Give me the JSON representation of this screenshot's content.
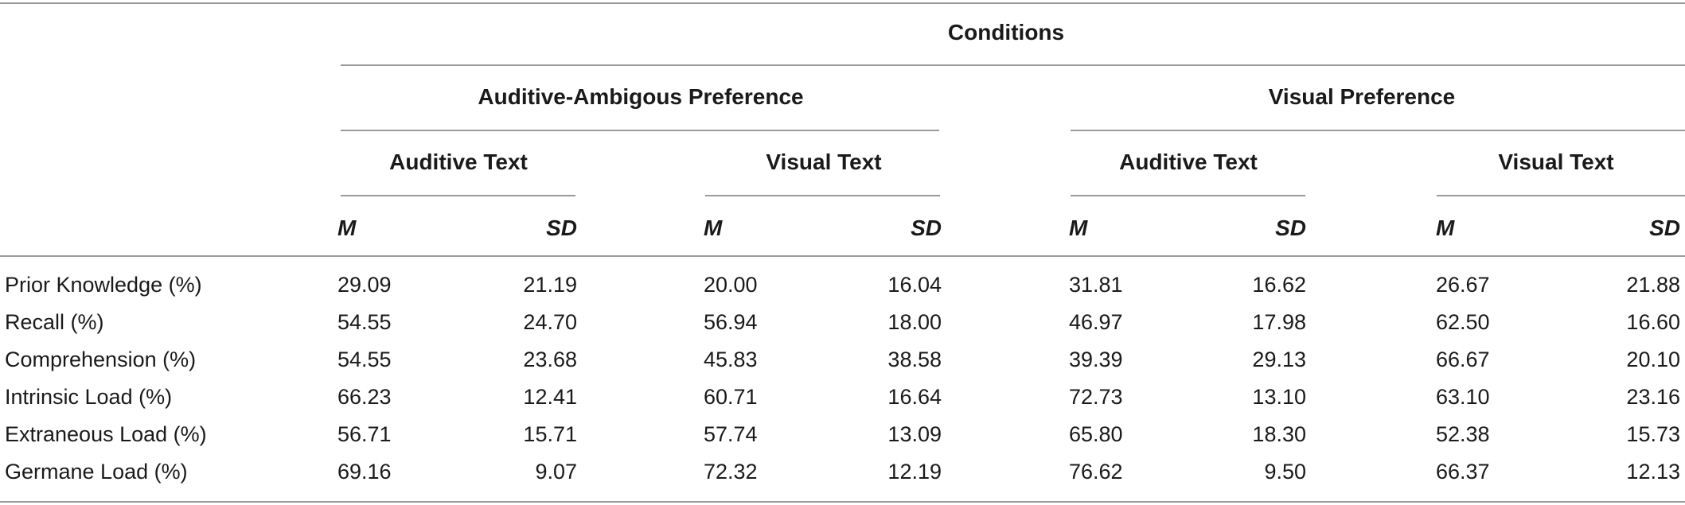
{
  "table": {
    "title": "Conditions",
    "groups": [
      {
        "label": "Auditive-Ambigous Preference",
        "subgroups": [
          {
            "label": "Auditive Text",
            "m": "M",
            "sd": "SD"
          },
          {
            "label": "Visual Text",
            "m": "M",
            "sd": "SD"
          }
        ]
      },
      {
        "label": "Visual Preference",
        "subgroups": [
          {
            "label": "Auditive Text",
            "m": "M",
            "sd": "SD"
          },
          {
            "label": "Visual Text",
            "m": "M",
            "sd": "SD"
          }
        ]
      }
    ],
    "rows": [
      {
        "label": "Prior Knowledge (%)",
        "values": [
          "29.09",
          "21.19",
          "20.00",
          "16.04",
          "31.81",
          "16.62",
          "26.67",
          "21.88"
        ]
      },
      {
        "label": "Recall (%)",
        "values": [
          "54.55",
          "24.70",
          "56.94",
          "18.00",
          "46.97",
          "17.98",
          "62.50",
          "16.60"
        ]
      },
      {
        "label": "Comprehension (%)",
        "values": [
          "54.55",
          "23.68",
          "45.83",
          "38.58",
          "39.39",
          "29.13",
          "66.67",
          "20.10"
        ]
      },
      {
        "label": "Intrinsic Load (%)",
        "values": [
          "66.23",
          "12.41",
          "60.71",
          "16.64",
          "72.73",
          "13.10",
          "63.10",
          "23.16"
        ]
      },
      {
        "label": "Extraneous Load (%)",
        "values": [
          "56.71",
          "15.71",
          "57.74",
          "13.09",
          "65.80",
          "18.30",
          "52.38",
          "15.73"
        ]
      },
      {
        "label": "Germane Load (%)",
        "values": [
          "69.16",
          "9.07",
          "72.32",
          "12.19",
          "76.62",
          "9.50",
          "66.37",
          "12.13"
        ]
      }
    ]
  }
}
